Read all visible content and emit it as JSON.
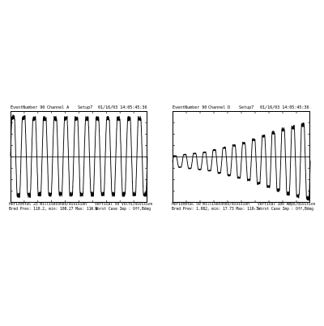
{
  "chart_data": [
    {
      "type": "line",
      "header": {
        "event": "EventNumber 90",
        "channel": "Channel A",
        "setup": "Setup7",
        "datetime": "01/16/03 14:05:45:36"
      },
      "footer": {
        "horizontal": "Horizontal 25 milliseconds/division",
        "vertical": "Vertical 50 Volts/division",
        "line2_left": "Bred  Prev: 110.2, min: 108.27  Max: 110.8",
        "line2_right": "- Worst Case   Imp : Off,Bdeg"
      },
      "grid": false,
      "x_divisions": 10,
      "ylim": [
        -4,
        4
      ],
      "series": [
        {
          "cycles": 13,
          "amplitude": [
            3.4,
            3.4,
            3.3,
            3.3,
            3.3,
            3.3,
            3.3,
            3.3,
            3.3,
            3.3,
            3.3,
            3.3,
            3.3
          ],
          "offset": 0.05,
          "shape": "clipped-sine"
        }
      ]
    },
    {
      "type": "line",
      "header": {
        "event": "EventNumber 90",
        "channel": "Channel D",
        "setup": "Setup7",
        "datetime": "01/16/03 14:05:45:36"
      },
      "footer": {
        "horizontal": "Horizontal 50 milliseconds/division",
        "vertical": "Vertical 100 Amps/division",
        "line2_left": "Bred  Prev: 1.082, min: 17.73  Max: 110.3",
        "line2_right": "- Worst Case   Imp : Off,Bdeg"
      },
      "grid": false,
      "x_divisions": 10,
      "ylim": [
        -4,
        4
      ],
      "series": [
        {
          "cycles": 14,
          "amplitude": [
            0.5,
            0.6,
            0.7,
            0.8,
            1.0,
            1.2,
            1.4,
            1.6,
            1.9,
            2.2,
            2.5,
            2.8,
            3.0,
            3.2
          ],
          "offset": -0.4,
          "shape": "clipped-sine"
        }
      ]
    }
  ]
}
